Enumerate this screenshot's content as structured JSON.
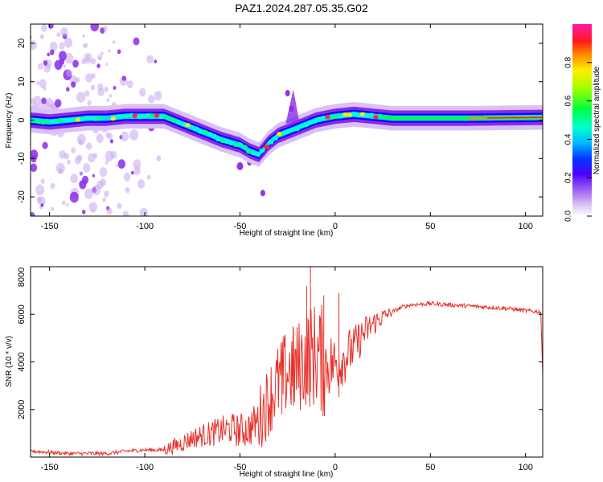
{
  "figure_title": "PAZ1.2024.287.05.35.G02",
  "colorbar": {
    "label": "Normalized spectral amplitude",
    "ticks": [
      "0.0",
      "0.2",
      "0.4",
      "0.6",
      "0.8"
    ],
    "tick_values": [
      0.0,
      0.2,
      0.4,
      0.6,
      0.8
    ],
    "range": [
      0,
      1
    ]
  },
  "chart_data": [
    {
      "type": "heatmap",
      "xlabel": "Height of straight line (km)",
      "ylabel": "Frequency (Hz)",
      "xlim": [
        -160,
        109
      ],
      "ylim": [
        -25,
        25
      ],
      "xticks": [
        -150,
        -100,
        -50,
        0,
        50,
        100
      ],
      "xtick_labels": [
        "-150",
        "-100",
        "-50",
        "0",
        "50",
        "100"
      ],
      "yticks": [
        -20,
        -10,
        0,
        10,
        20
      ],
      "ytick_labels": [
        "-20",
        "-10",
        "0",
        "10",
        "20"
      ],
      "colormap": [
        "#ffffff",
        "#c9a6f0",
        "#7b00e0",
        "#1a00ff",
        "#00e8ff",
        "#00ff40",
        "#ffee00",
        "#ff2a2a",
        "#ff00c8"
      ],
      "ridge": [
        {
          "x": -160,
          "f": 0.0
        },
        {
          "x": -150,
          "f": -0.5
        },
        {
          "x": -140,
          "f": 0.0
        },
        {
          "x": -130,
          "f": 0.5
        },
        {
          "x": -120,
          "f": 0.5
        },
        {
          "x": -110,
          "f": 1.0
        },
        {
          "x": -100,
          "f": 1.0
        },
        {
          "x": -90,
          "f": 1.0
        },
        {
          "x": -80,
          "f": -1.0
        },
        {
          "x": -70,
          "f": -3.0
        },
        {
          "x": -60,
          "f": -5.0
        },
        {
          "x": -50,
          "f": -6.5
        },
        {
          "x": -45,
          "f": -8.0
        },
        {
          "x": -40,
          "f": -9.0
        },
        {
          "x": -35,
          "f": -6.0
        },
        {
          "x": -30,
          "f": -4.0
        },
        {
          "x": -20,
          "f": -2.0
        },
        {
          "x": -10,
          "f": 0.0
        },
        {
          "x": 0,
          "f": 1.0
        },
        {
          "x": 10,
          "f": 1.5
        },
        {
          "x": 20,
          "f": 1.0
        },
        {
          "x": 30,
          "f": 0.5
        },
        {
          "x": 50,
          "f": 0.5
        },
        {
          "x": 70,
          "f": 0.5
        },
        {
          "x": 90,
          "f": 0.6
        },
        {
          "x": 109,
          "f": 0.7
        }
      ]
    },
    {
      "type": "line",
      "xlabel": "Height of straight line (km)",
      "ylabel": "SNR (10 * v/v)",
      "xlim": [
        -160,
        109
      ],
      "ylim": [
        0,
        8000
      ],
      "xticks": [
        -150,
        -100,
        -50,
        0,
        50,
        100
      ],
      "xtick_labels": [
        "-150",
        "-100",
        "-50",
        "0",
        "50",
        "100"
      ],
      "yticks": [
        2000,
        4000,
        6000,
        8000
      ],
      "ytick_labels": [
        "2000",
        "4000",
        "6000",
        "8000"
      ],
      "series": [
        {
          "color": "#e8302a",
          "x": [
            -160,
            -150,
            -140,
            -130,
            -120,
            -110,
            -100,
            -90,
            -85,
            -80,
            -75,
            -70,
            -65,
            -60,
            -55,
            -50,
            -45,
            -40,
            -35,
            -30,
            -25,
            -20,
            -15,
            -10,
            -5,
            0,
            5,
            10,
            15,
            20,
            25,
            30,
            35,
            40,
            50,
            60,
            70,
            80,
            90,
            100,
            108,
            109
          ],
          "values": [
            250,
            200,
            150,
            150,
            150,
            250,
            300,
            300,
            450,
            600,
            800,
            900,
            1000,
            1100,
            1200,
            1100,
            1200,
            1600,
            2400,
            3100,
            3600,
            3700,
            4200,
            4300,
            3900,
            3900,
            4200,
            4600,
            5200,
            5600,
            5900,
            6100,
            6300,
            6400,
            6450,
            6400,
            6350,
            6300,
            6250,
            6150,
            6100,
            3500
          ]
        }
      ]
    }
  ]
}
